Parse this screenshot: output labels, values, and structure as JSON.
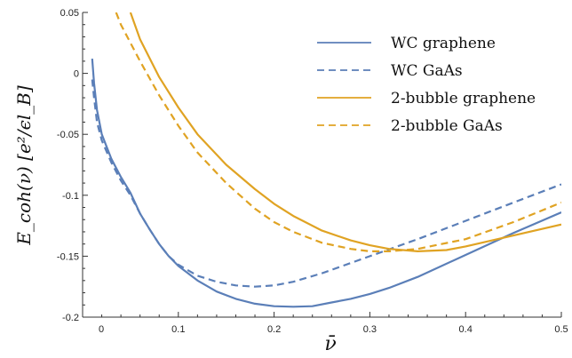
{
  "chart_data": {
    "type": "line",
    "xlabel": "ν̄",
    "ylabel": "E_coh(ν) [e²/ϵl_B]",
    "xlim": [
      0,
      0.5
    ],
    "ylim": [
      -0.2,
      0.05
    ],
    "x_ticks": [
      0,
      0.1,
      0.2,
      0.3,
      0.4,
      0.5
    ],
    "x_tick_labels": [
      "0",
      "0.1",
      "0.2",
      "0.3",
      "0.4",
      "0.5"
    ],
    "y_ticks": [
      0.05,
      0,
      -0.05,
      -0.1,
      -0.15,
      -0.2
    ],
    "y_tick_labels": [
      "0.05",
      "0",
      "-0.05",
      "-0.1",
      "-0.15",
      "-0.2"
    ],
    "grid": false,
    "legend_position": "top-right",
    "colors": {
      "blue": "#5b7fb8",
      "orange": "#e0a323"
    },
    "series": [
      {
        "name": "WC graphene",
        "color": "#5b7fb8",
        "dash": false,
        "points": [
          [
            0.01,
            0.012
          ],
          [
            0.012,
            -0.008
          ],
          [
            0.015,
            -0.03
          ],
          [
            0.02,
            -0.05
          ],
          [
            0.03,
            -0.07
          ],
          [
            0.04,
            -0.085
          ],
          [
            0.05,
            -0.098
          ],
          [
            0.06,
            -0.115
          ],
          [
            0.07,
            -0.128
          ],
          [
            0.08,
            -0.14
          ],
          [
            0.09,
            -0.15
          ],
          [
            0.1,
            -0.158
          ],
          [
            0.12,
            -0.17
          ],
          [
            0.14,
            -0.179
          ],
          [
            0.16,
            -0.185
          ],
          [
            0.18,
            -0.189
          ],
          [
            0.2,
            -0.191
          ],
          [
            0.22,
            -0.1915
          ],
          [
            0.24,
            -0.191
          ],
          [
            0.26,
            -0.188
          ],
          [
            0.28,
            -0.185
          ],
          [
            0.3,
            -0.181
          ],
          [
            0.32,
            -0.176
          ],
          [
            0.35,
            -0.167
          ],
          [
            0.4,
            -0.149
          ],
          [
            0.45,
            -0.131
          ],
          [
            0.5,
            -0.114
          ]
        ]
      },
      {
        "name": "WC GaAs",
        "color": "#5b7fb8",
        "dash": true,
        "points": [
          [
            0.01,
            -0.005
          ],
          [
            0.012,
            -0.02
          ],
          [
            0.015,
            -0.04
          ],
          [
            0.02,
            -0.055
          ],
          [
            0.03,
            -0.073
          ],
          [
            0.04,
            -0.088
          ],
          [
            0.05,
            -0.1
          ],
          [
            0.06,
            -0.115
          ],
          [
            0.07,
            -0.128
          ],
          [
            0.08,
            -0.14
          ],
          [
            0.09,
            -0.15
          ],
          [
            0.1,
            -0.157
          ],
          [
            0.12,
            -0.166
          ],
          [
            0.14,
            -0.171
          ],
          [
            0.16,
            -0.174
          ],
          [
            0.18,
            -0.175
          ],
          [
            0.2,
            -0.174
          ],
          [
            0.22,
            -0.171
          ],
          [
            0.25,
            -0.164
          ],
          [
            0.3,
            -0.15
          ],
          [
            0.35,
            -0.136
          ],
          [
            0.4,
            -0.121
          ],
          [
            0.45,
            -0.106
          ],
          [
            0.5,
            -0.091
          ]
        ]
      },
      {
        "name": "2-bubble graphene",
        "color": "#e0a323",
        "dash": false,
        "points": [
          [
            0.05,
            0.05
          ],
          [
            0.06,
            0.028
          ],
          [
            0.08,
            -0.003
          ],
          [
            0.1,
            -0.028
          ],
          [
            0.12,
            -0.05
          ],
          [
            0.15,
            -0.075
          ],
          [
            0.18,
            -0.095
          ],
          [
            0.2,
            -0.107
          ],
          [
            0.22,
            -0.117
          ],
          [
            0.25,
            -0.129
          ],
          [
            0.28,
            -0.137
          ],
          [
            0.3,
            -0.141
          ],
          [
            0.32,
            -0.144
          ],
          [
            0.35,
            -0.146
          ],
          [
            0.38,
            -0.145
          ],
          [
            0.4,
            -0.142
          ],
          [
            0.45,
            -0.133
          ],
          [
            0.5,
            -0.124
          ]
        ]
      },
      {
        "name": "2-bubble GaAs",
        "color": "#e0a323",
        "dash": true,
        "points": [
          [
            0.035,
            0.05
          ],
          [
            0.04,
            0.04
          ],
          [
            0.05,
            0.025
          ],
          [
            0.06,
            0.01
          ],
          [
            0.08,
            -0.018
          ],
          [
            0.1,
            -0.043
          ],
          [
            0.12,
            -0.065
          ],
          [
            0.15,
            -0.09
          ],
          [
            0.18,
            -0.111
          ],
          [
            0.2,
            -0.122
          ],
          [
            0.22,
            -0.13
          ],
          [
            0.25,
            -0.139
          ],
          [
            0.28,
            -0.144
          ],
          [
            0.3,
            -0.146
          ],
          [
            0.32,
            -0.146
          ],
          [
            0.35,
            -0.144
          ],
          [
            0.4,
            -0.136
          ],
          [
            0.45,
            -0.122
          ],
          [
            0.5,
            -0.106
          ]
        ]
      }
    ]
  }
}
